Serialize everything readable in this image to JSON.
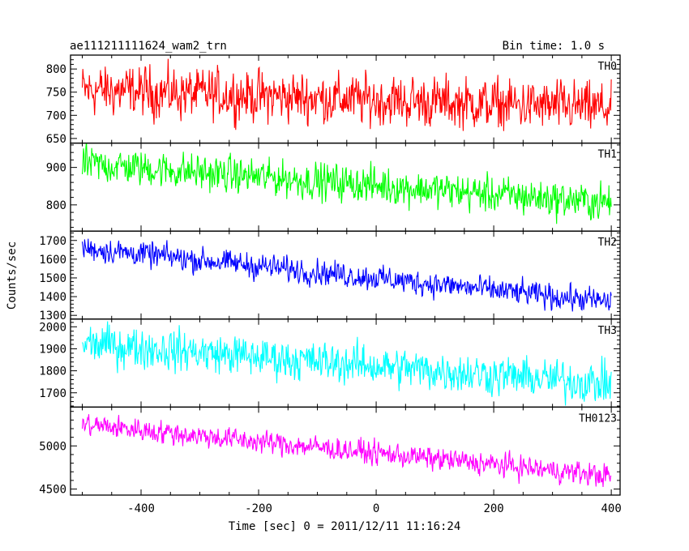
{
  "header": {
    "title": "ae111211111624_wam2_trn",
    "bin_time": "Bin time: 1.0 s"
  },
  "axes": {
    "xlabel": "Time [sec] 0 = 2011/12/11 11:16:24",
    "ylabel": "Counts/sec"
  },
  "chart_data": {
    "type": "line",
    "x": {
      "range": [
        -520,
        415
      ],
      "ticks": [
        -400,
        -200,
        0,
        200,
        400
      ],
      "minor_step": 50
    },
    "panels": [
      {
        "name": "TH0",
        "color": "#ff0000",
        "ylim": [
          640,
          830
        ],
        "yticks": [
          650,
          700,
          750,
          800
        ],
        "minor_step": 10,
        "series_start": [
          -500,
          755
        ],
        "series_end": [
          400,
          715
        ],
        "noise_amplitude": 45
      },
      {
        "name": "TH1",
        "color": "#00ff00",
        "ylim": [
          730,
          965
        ],
        "yticks": [
          800,
          900
        ],
        "minor_step": 20,
        "series_start": [
          -500,
          910
        ],
        "series_end": [
          400,
          805
        ],
        "noise_amplitude": 40
      },
      {
        "name": "TH2",
        "color": "#0000ff",
        "ylim": [
          1280,
          1750
        ],
        "yticks": [
          1300,
          1400,
          1500,
          1600,
          1700
        ],
        "minor_step": 20,
        "series_start": [
          -500,
          1660
        ],
        "series_end": [
          400,
          1370
        ],
        "noise_amplitude": 55
      },
      {
        "name": "TH3",
        "color": "#00ffff",
        "ylim": [
          1635,
          2035
        ],
        "yticks": [
          1700,
          1800,
          1900,
          2000
        ],
        "minor_step": 20,
        "series_start": [
          -500,
          1925
        ],
        "series_end": [
          400,
          1740
        ],
        "noise_amplitude": 75
      },
      {
        "name": "TH0123",
        "color": "#ff00ff",
        "ylim": [
          4430,
          5450
        ],
        "yticks": [
          4500,
          5000
        ],
        "minor_step": 100,
        "series_start": [
          -500,
          5250
        ],
        "series_end": [
          400,
          4650
        ],
        "noise_amplitude": 110
      }
    ]
  }
}
